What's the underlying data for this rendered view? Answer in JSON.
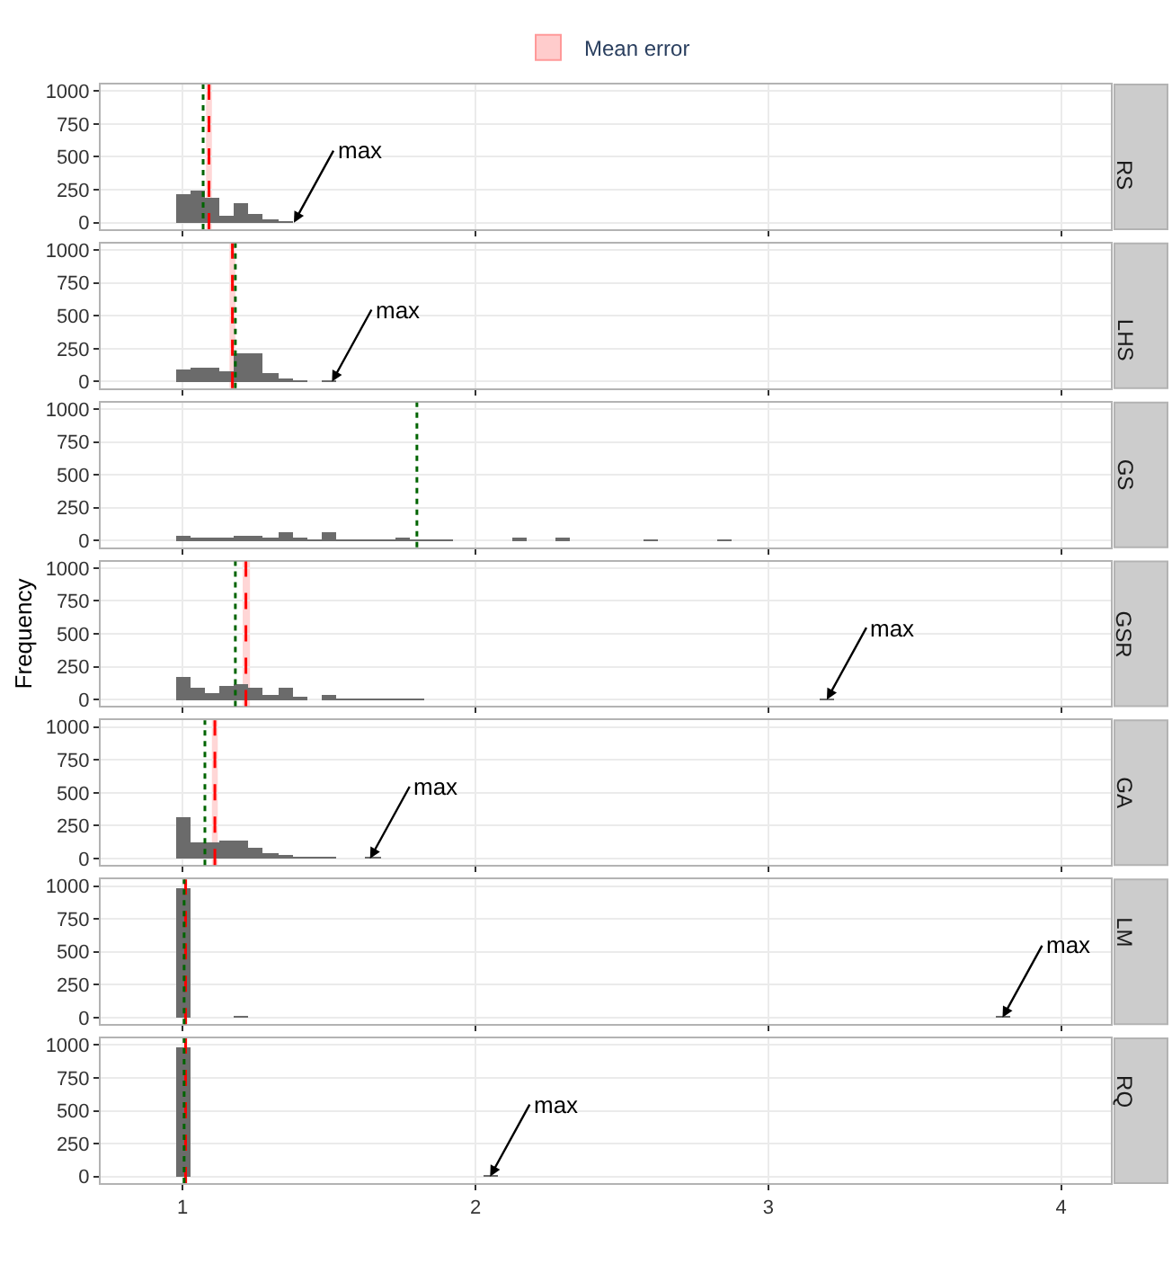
{
  "chart_data": [
    {
      "type": "histogram",
      "title": "RS",
      "legend": "top",
      "bins": [
        0.975,
        1.025,
        1.075,
        1.125,
        1.175,
        1.225,
        1.275,
        1.325,
        1.375
      ],
      "values": [
        220,
        237,
        193,
        53,
        154,
        61,
        13,
        5
      ],
      "color": "#6b6b6b",
      "xlim": [
        0.72,
        4.17
      ],
      "xticks": [
        1,
        2,
        3,
        4
      ],
      "ylim": [
        -50,
        1050
      ],
      "yticks": [
        0,
        250,
        500,
        750,
        1000
      ],
      "grid": true,
      "tick_labels": "y",
      "ref_lines": [
        {
          "axis": "x",
          "value": 1.09,
          "color": "#ff0000",
          "line_style": "dashed"
        },
        {
          "axis": "x",
          "value": 1.07,
          "color": "#006400",
          "line_style": "dotted"
        }
      ],
      "bands": [
        {
          "axis": "x",
          "from": 1.08,
          "to": 1.1,
          "label": "Mean error",
          "color": "#ffcccc"
        }
      ],
      "annotations": [
        {
          "text": "max",
          "x": 1.38,
          "y": 0
        }
      ]
    },
    {
      "type": "histogram",
      "title": "LHS",
      "bins": [
        0.975,
        1.025,
        1.075,
        1.125,
        1.175,
        1.225,
        1.275,
        1.325,
        1.375,
        1.425,
        1.475,
        1.525
      ],
      "values": [
        92,
        110,
        110,
        79,
        215,
        215,
        70,
        26,
        9,
        0,
        2
      ],
      "color": "#6b6b6b",
      "xlim": [
        0.72,
        4.17
      ],
      "xticks": [
        1,
        2,
        3,
        4
      ],
      "ylim": [
        -50,
        1050
      ],
      "yticks": [
        0,
        250,
        500,
        750,
        1000
      ],
      "grid": true,
      "tick_labels": "y",
      "ref_lines": [
        {
          "axis": "x",
          "value": 1.17,
          "color": "#ff0000",
          "line_style": "dashed"
        },
        {
          "axis": "x",
          "value": 1.18,
          "color": "#006400",
          "line_style": "dotted"
        }
      ],
      "bands": [
        {
          "axis": "x",
          "from": 1.16,
          "to": 1.18,
          "color": "#ffcccc"
        }
      ],
      "annotations": [
        {
          "text": "max",
          "x": 1.51,
          "y": 0
        }
      ]
    },
    {
      "type": "histogram",
      "title": "GS",
      "bins": [
        0.975,
        1.025,
        1.075,
        1.125,
        1.175,
        1.225,
        1.275,
        1.325,
        1.375,
        1.425,
        1.475,
        1.525,
        1.575,
        1.625,
        1.675,
        1.725,
        1.775,
        1.825,
        1.875,
        1.925,
        1.975,
        2.025,
        2.075,
        2.125,
        2.175,
        2.225,
        2.275,
        2.325,
        2.375,
        2.425,
        2.475,
        2.525,
        2.575,
        2.625,
        2.675,
        2.725,
        2.775,
        2.825,
        2.875
      ],
      "values": [
        35,
        15,
        15,
        15,
        35,
        45,
        15,
        65,
        15,
        10,
        65,
        10,
        5,
        5,
        5,
        30,
        5,
        8,
        8,
        0,
        0,
        0,
        0,
        15,
        0,
        0,
        15,
        0,
        0,
        0,
        0,
        0,
        10,
        0,
        0,
        0,
        0,
        5
      ],
      "color": "#6b6b6b",
      "xlim": [
        0.72,
        4.17
      ],
      "xticks": [
        1,
        2,
        3,
        4
      ],
      "ylim": [
        -50,
        1050
      ],
      "yticks": [
        0,
        250,
        500,
        750,
        1000
      ],
      "grid": true,
      "tick_labels": "y",
      "ref_lines": [
        {
          "axis": "x",
          "value": 1.8,
          "color": "#006400",
          "line_style": "dotted"
        }
      ]
    },
    {
      "type": "histogram",
      "title": "GSR",
      "ylabel": "Frequency",
      "bins": [
        0.975,
        1.025,
        1.075,
        1.125,
        1.175,
        1.225,
        1.275,
        1.325,
        1.375,
        1.425,
        1.475,
        1.525,
        1.575,
        1.625,
        1.675,
        1.725,
        1.775,
        1.825,
        3.175,
        3.225
      ],
      "values": [
        175,
        88,
        48,
        110,
        118,
        88,
        40,
        100,
        13,
        0,
        40,
        9,
        5,
        5,
        5,
        3,
        3,
        0,
        3
      ],
      "color": "#6b6b6b",
      "xlim": [
        0.72,
        4.17
      ],
      "xticks": [
        1,
        2,
        3,
        4
      ],
      "ylim": [
        -50,
        1050
      ],
      "yticks": [
        0,
        250,
        500,
        750,
        1000
      ],
      "grid": true,
      "tick_labels": "y",
      "ref_lines": [
        {
          "axis": "x",
          "value": 1.216,
          "color": "#ff0000",
          "line_style": "dashed"
        },
        {
          "axis": "x",
          "value": 1.18,
          "color": "#006400",
          "line_style": "dotted"
        }
      ],
      "bands": [
        {
          "axis": "x",
          "from": 1.205,
          "to": 1.23,
          "color": "#ffcccc"
        }
      ],
      "annotations": [
        {
          "text": "max",
          "x": 3.2,
          "y": 0
        }
      ]
    },
    {
      "type": "histogram",
      "title": "GA",
      "bins": [
        0.975,
        1.025,
        1.075,
        1.125,
        1.175,
        1.225,
        1.275,
        1.325,
        1.375,
        1.425,
        1.475,
        1.525,
        1.575,
        1.625,
        1.675
      ],
      "values": [
        307,
        118,
        118,
        136,
        136,
        79,
        35,
        13,
        4,
        2,
        2,
        0,
        0,
        1
      ],
      "color": "#6b6b6b",
      "xlim": [
        0.72,
        4.17
      ],
      "xticks": [
        1,
        2,
        3,
        4
      ],
      "ylim": [
        -50,
        1050
      ],
      "yticks": [
        0,
        250,
        500,
        750,
        1000
      ],
      "grid": true,
      "tick_labels": "y",
      "ref_lines": [
        {
          "axis": "x",
          "value": 1.11,
          "color": "#ff0000",
          "line_style": "dashed"
        },
        {
          "axis": "x",
          "value": 1.076,
          "color": "#006400",
          "line_style": "dotted"
        }
      ],
      "bands": [
        {
          "axis": "x",
          "from": 1.1,
          "to": 1.12,
          "color": "#ffcccc"
        }
      ],
      "annotations": [
        {
          "text": "max",
          "x": 1.64,
          "y": 0
        }
      ]
    },
    {
      "type": "histogram",
      "title": "LM",
      "bins": [
        0.975,
        1.025,
        1.175,
        1.225,
        3.775,
        3.825
      ],
      "values": [
        985,
        0,
        5,
        0,
        3
      ],
      "color": "#6b6b6b",
      "xlim": [
        0.72,
        4.17
      ],
      "xticks": [
        1,
        2,
        3,
        4
      ],
      "ylim": [
        -50,
        1050
      ],
      "yticks": [
        0,
        250,
        500,
        750,
        1000
      ],
      "grid": true,
      "tick_labels": "y",
      "ref_lines": [
        {
          "axis": "x",
          "value": 1.01,
          "color": "#ff0000",
          "line_style": "dashed"
        },
        {
          "axis": "x",
          "value": 1.005,
          "color": "#006400",
          "line_style": "dotted"
        }
      ],
      "bands": [
        {
          "axis": "x",
          "from": 1.003,
          "to": 1.017,
          "color": "#ffcccc"
        }
      ],
      "annotations": [
        {
          "text": "max",
          "x": 3.8,
          "y": 0
        }
      ]
    },
    {
      "type": "histogram",
      "title": "RQ",
      "bins": [
        0.975,
        1.025,
        2.025,
        2.075
      ],
      "values": [
        985,
        0,
        3
      ],
      "color": "#6b6b6b",
      "xlim": [
        0.72,
        4.17
      ],
      "xticks": [
        1,
        2,
        3,
        4
      ],
      "ylim": [
        -50,
        1050
      ],
      "yticks": [
        0,
        250,
        500,
        750,
        1000
      ],
      "grid": true,
      "ref_lines": [
        {
          "axis": "x",
          "value": 1.01,
          "color": "#ff0000",
          "line_style": "dashed"
        },
        {
          "axis": "x",
          "value": 1.005,
          "color": "#006400",
          "line_style": "dotted"
        }
      ],
      "bands": [
        {
          "axis": "x",
          "from": 1.003,
          "to": 1.017,
          "color": "#ffcccc"
        }
      ],
      "annotations": [
        {
          "text": "max",
          "x": 2.05,
          "y": 0
        }
      ]
    }
  ]
}
